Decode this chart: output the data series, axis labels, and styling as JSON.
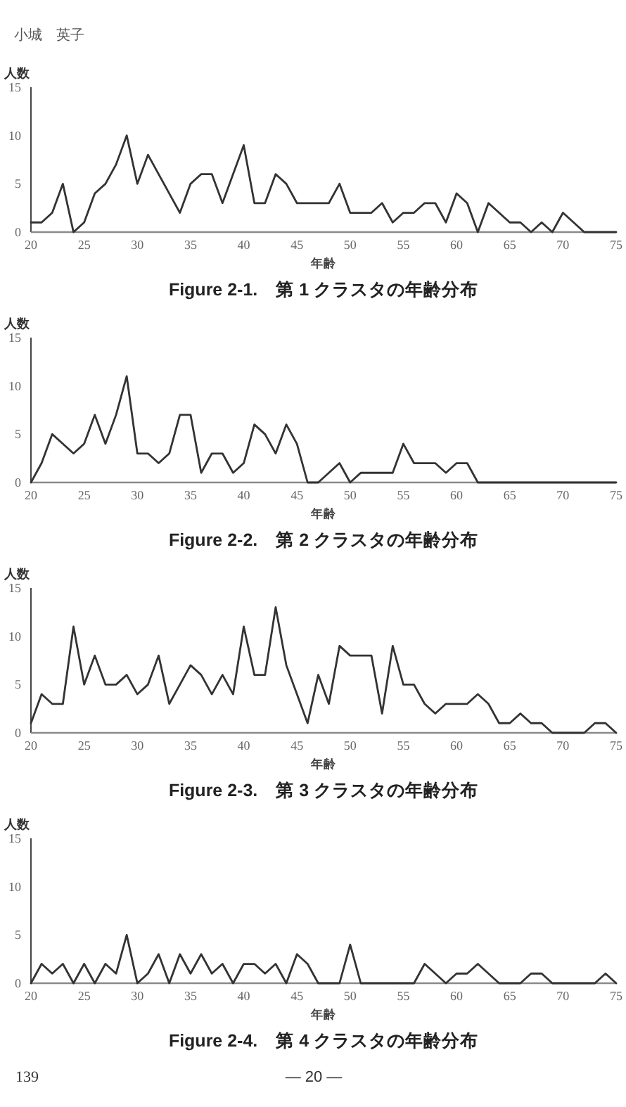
{
  "chart_data": [
    {
      "type": "line",
      "title": "Figure 2-1.　第 1 クラスタの年齢分布",
      "xlabel": "年齢",
      "ylabel": "人数",
      "annotations": [
        "小城　英子"
      ],
      "line_style": "solid",
      "x": [
        20,
        21,
        22,
        23,
        24,
        25,
        26,
        27,
        28,
        29,
        30,
        31,
        32,
        33,
        34,
        35,
        36,
        37,
        38,
        39,
        40,
        41,
        42,
        43,
        44,
        45,
        46,
        47,
        48,
        49,
        50,
        51,
        52,
        53,
        54,
        55,
        56,
        57,
        58,
        59,
        60,
        61,
        62,
        63,
        64,
        65,
        66,
        67,
        68,
        69,
        70,
        71,
        72,
        73,
        74,
        75
      ],
      "series": [
        {
          "color": "#333333",
          "values": [
            1,
            1,
            2,
            5,
            0,
            1,
            4,
            5,
            7,
            10,
            5,
            8,
            6,
            4,
            2,
            5,
            6,
            6,
            3,
            6,
            9,
            3,
            3,
            6,
            5,
            3,
            3,
            3,
            3,
            5,
            2,
            2,
            2,
            3,
            1,
            2,
            2,
            3,
            3,
            1,
            4,
            3,
            0,
            3,
            2,
            1,
            1,
            0,
            1,
            0,
            2,
            1,
            0,
            0,
            0,
            0
          ]
        }
      ],
      "xlim": [
        20,
        75
      ],
      "ylim": [
        0,
        15
      ],
      "xticks": [
        20,
        25,
        30,
        35,
        40,
        45,
        50,
        55,
        60,
        65,
        70,
        75
      ],
      "yticks": [
        0,
        5,
        10,
        15
      ]
    },
    {
      "type": "line",
      "title": "Figure 2-2.　第 2 クラスタの年齢分布",
      "xlabel": "年齢",
      "ylabel": "人数",
      "line_style": "solid",
      "x": [
        20,
        21,
        22,
        23,
        24,
        25,
        26,
        27,
        28,
        29,
        30,
        31,
        32,
        33,
        34,
        35,
        36,
        37,
        38,
        39,
        40,
        41,
        42,
        43,
        44,
        45,
        46,
        47,
        48,
        49,
        50,
        51,
        52,
        53,
        54,
        55,
        56,
        57,
        58,
        59,
        60,
        61,
        62,
        63,
        64,
        65,
        66,
        67,
        68,
        69,
        70,
        71,
        72,
        73,
        74,
        75
      ],
      "series": [
        {
          "color": "#333333",
          "values": [
            0,
            2,
            5,
            4,
            3,
            4,
            7,
            4,
            7,
            11,
            3,
            3,
            2,
            3,
            7,
            7,
            1,
            3,
            3,
            1,
            2,
            6,
            5,
            3,
            6,
            4,
            0,
            0,
            1,
            2,
            0,
            1,
            1,
            1,
            1,
            4,
            2,
            2,
            2,
            1,
            2,
            2,
            0,
            0,
            0,
            0,
            0,
            0,
            0,
            0,
            0,
            0,
            0,
            0,
            0,
            0
          ]
        }
      ],
      "xlim": [
        20,
        75
      ],
      "ylim": [
        0,
        15
      ],
      "xticks": [
        20,
        25,
        30,
        35,
        40,
        45,
        50,
        55,
        60,
        65,
        70,
        75
      ],
      "yticks": [
        0,
        5,
        10,
        15
      ]
    },
    {
      "type": "line",
      "title": "Figure 2-3.　第 3 クラスタの年齢分布",
      "xlabel": "年齢",
      "ylabel": "人数",
      "line_style": "solid",
      "x": [
        20,
        21,
        22,
        23,
        24,
        25,
        26,
        27,
        28,
        29,
        30,
        31,
        32,
        33,
        34,
        35,
        36,
        37,
        38,
        39,
        40,
        41,
        42,
        43,
        44,
        45,
        46,
        47,
        48,
        49,
        50,
        51,
        52,
        53,
        54,
        55,
        56,
        57,
        58,
        59,
        60,
        61,
        62,
        63,
        64,
        65,
        66,
        67,
        68,
        69,
        70,
        71,
        72,
        73,
        74,
        75
      ],
      "series": [
        {
          "color": "#333333",
          "values": [
            1,
            4,
            3,
            3,
            11,
            5,
            8,
            5,
            5,
            6,
            4,
            5,
            8,
            3,
            5,
            7,
            6,
            4,
            6,
            4,
            11,
            6,
            6,
            13,
            7,
            4,
            1,
            6,
            3,
            9,
            8,
            8,
            8,
            2,
            9,
            5,
            5,
            3,
            2,
            3,
            3,
            3,
            4,
            3,
            1,
            1,
            2,
            1,
            1,
            0,
            0,
            0,
            0,
            1,
            1,
            0
          ]
        }
      ],
      "xlim": [
        20,
        75
      ],
      "ylim": [
        0,
        15
      ],
      "xticks": [
        20,
        25,
        30,
        35,
        40,
        45,
        50,
        55,
        60,
        65,
        70,
        75
      ],
      "yticks": [
        0,
        5,
        10,
        15
      ]
    },
    {
      "type": "line",
      "title": "Figure 2-4.　第 4 クラスタの年齢分布",
      "xlabel": "年齢",
      "ylabel": "人数",
      "annotations": [
        "139",
        "― 20 ―"
      ],
      "line_style": "solid",
      "x": [
        20,
        21,
        22,
        23,
        24,
        25,
        26,
        27,
        28,
        29,
        30,
        31,
        32,
        33,
        34,
        35,
        36,
        37,
        38,
        39,
        40,
        41,
        42,
        43,
        44,
        45,
        46,
        47,
        48,
        49,
        50,
        51,
        52,
        53,
        54,
        55,
        56,
        57,
        58,
        59,
        60,
        61,
        62,
        63,
        64,
        65,
        66,
        67,
        68,
        69,
        70,
        71,
        72,
        73,
        74,
        75
      ],
      "series": [
        {
          "color": "#333333",
          "values": [
            0,
            2,
            1,
            2,
            0,
            2,
            0,
            2,
            1,
            5,
            0,
            1,
            3,
            0,
            3,
            1,
            3,
            1,
            2,
            0,
            2,
            2,
            1,
            2,
            0,
            3,
            2,
            0,
            0,
            0,
            4,
            0,
            0,
            0,
            0,
            0,
            0,
            2,
            1,
            0,
            1,
            1,
            2,
            1,
            0,
            0,
            0,
            1,
            1,
            0,
            0,
            0,
            0,
            0,
            1,
            0
          ]
        }
      ],
      "xlim": [
        20,
        75
      ],
      "ylim": [
        0,
        15
      ],
      "xticks": [
        20,
        25,
        30,
        35,
        40,
        45,
        50,
        55,
        60,
        65,
        70,
        75
      ],
      "yticks": [
        0,
        5,
        10,
        15
      ]
    }
  ]
}
